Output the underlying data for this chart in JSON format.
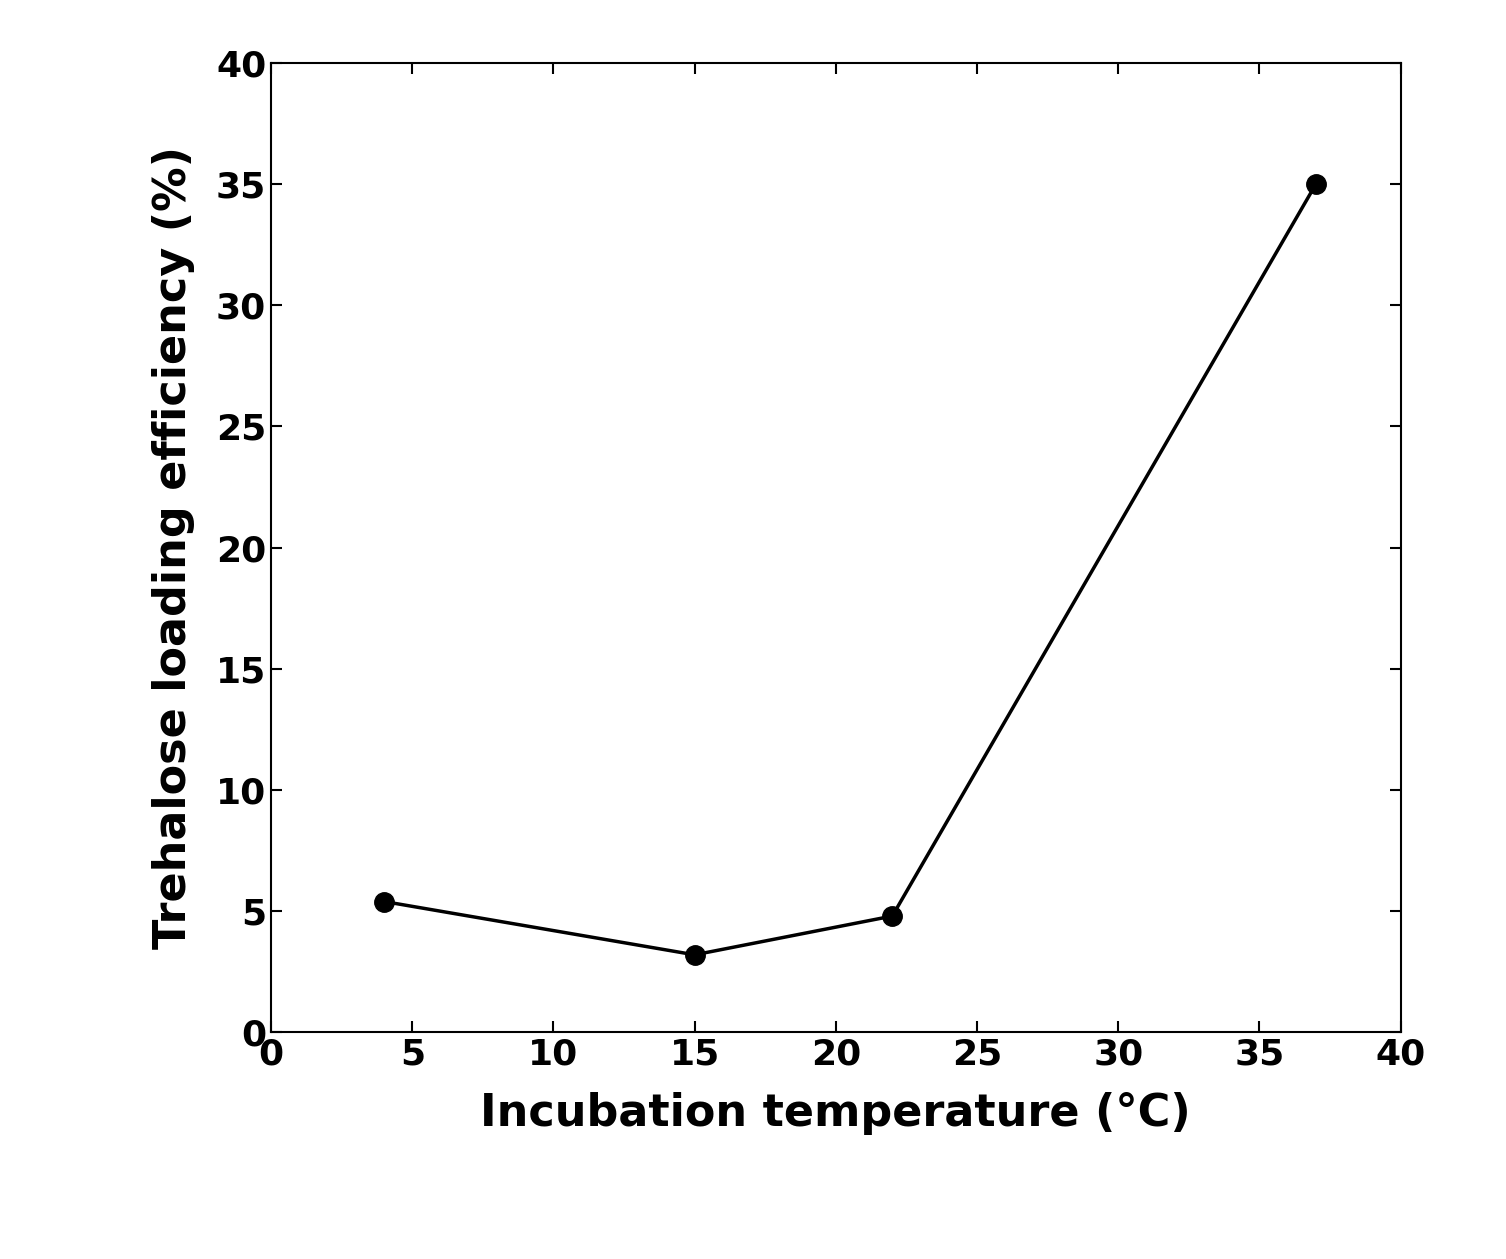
{
  "x": [
    4,
    15,
    22,
    37
  ],
  "y": [
    5.4,
    3.2,
    4.8,
    35.0
  ],
  "xlabel": "Incubation temperature (°C)",
  "ylabel": "Trehalose loading efficiency (%)",
  "xlim": [
    0,
    40
  ],
  "ylim": [
    0,
    40
  ],
  "xticks": [
    0,
    5,
    10,
    15,
    20,
    25,
    30,
    35,
    40
  ],
  "yticks": [
    0,
    5,
    10,
    15,
    20,
    25,
    30,
    35,
    40
  ],
  "line_color": "#000000",
  "marker": "o",
  "markersize": 14,
  "linewidth": 2.5,
  "xlabel_fontsize": 32,
  "ylabel_fontsize": 32,
  "tick_fontsize": 26,
  "background_color": "#ffffff",
  "fig_width": 15.06,
  "fig_height": 12.59,
  "dpi": 100
}
